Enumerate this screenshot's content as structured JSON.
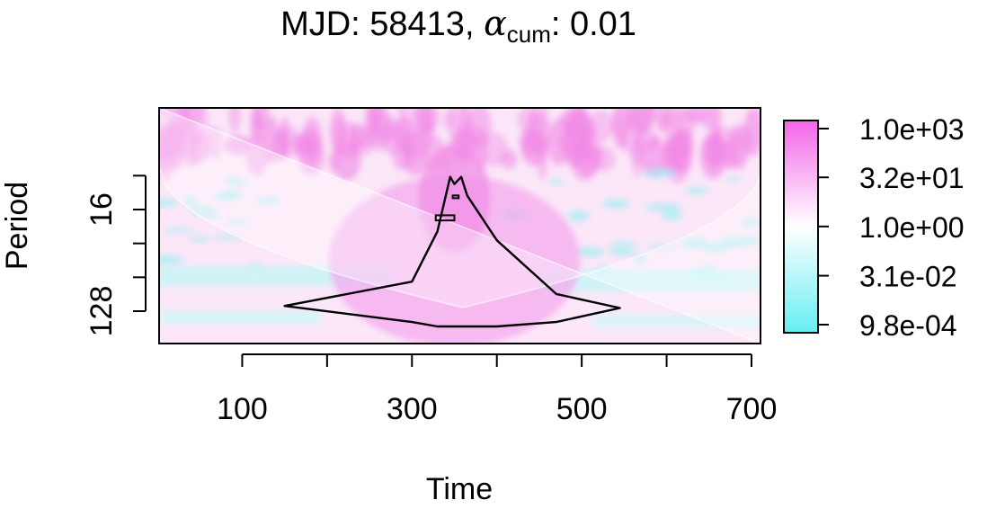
{
  "chart_data": {
    "type": "heatmap",
    "title": {
      "prefix": "MJD: 58413, ",
      "alpha": "α",
      "alpha_subscript": "cum",
      "suffix": ": 0.01"
    },
    "xlabel": "Time",
    "ylabel": "Period",
    "x_axis": {
      "range": [
        0,
        715
      ],
      "ticks": [
        100,
        200,
        300,
        400,
        500,
        600,
        700
      ],
      "tick_labels": [
        "100",
        "",
        "300",
        "",
        "500",
        "",
        "700"
      ]
    },
    "y_axis": {
      "scale": "log2",
      "range": [
        4,
        256
      ],
      "ticks": [
        8,
        16,
        32,
        64,
        128
      ],
      "tick_labels": [
        "",
        "16",
        "",
        "",
        "128"
      ]
    },
    "colorbar": {
      "scale": "log10",
      "range": [
        0.00098,
        1000
      ],
      "ticks": [
        1000,
        32,
        1.0,
        0.031,
        0.00098
      ],
      "tick_labels": [
        "1.0e+03",
        "3.2e+01",
        "1.0e+00",
        "3.1e-02",
        "9.8e-04"
      ],
      "color_low": "#66eef2",
      "color_mid": "#ffffff",
      "color_high": "#f466e8"
    },
    "significance_contour_period_extent": {
      "x": [
        150,
        300,
        330,
        345,
        350,
        358,
        365,
        400,
        470,
        545
      ],
      "upper_period": [
        115,
        70,
        25,
        8.2,
        9.5,
        8.2,
        12,
        30,
        90,
        120
      ],
      "lower_period": [
        115,
        160,
        175,
        175,
        175,
        175,
        175,
        175,
        160,
        120
      ]
    },
    "significance_islands": [
      {
        "x": [
          328,
          350
        ],
        "period": [
          18,
          20
        ]
      },
      {
        "x": [
          348,
          355
        ],
        "period": [
          12,
          12.6
        ]
      }
    ]
  }
}
